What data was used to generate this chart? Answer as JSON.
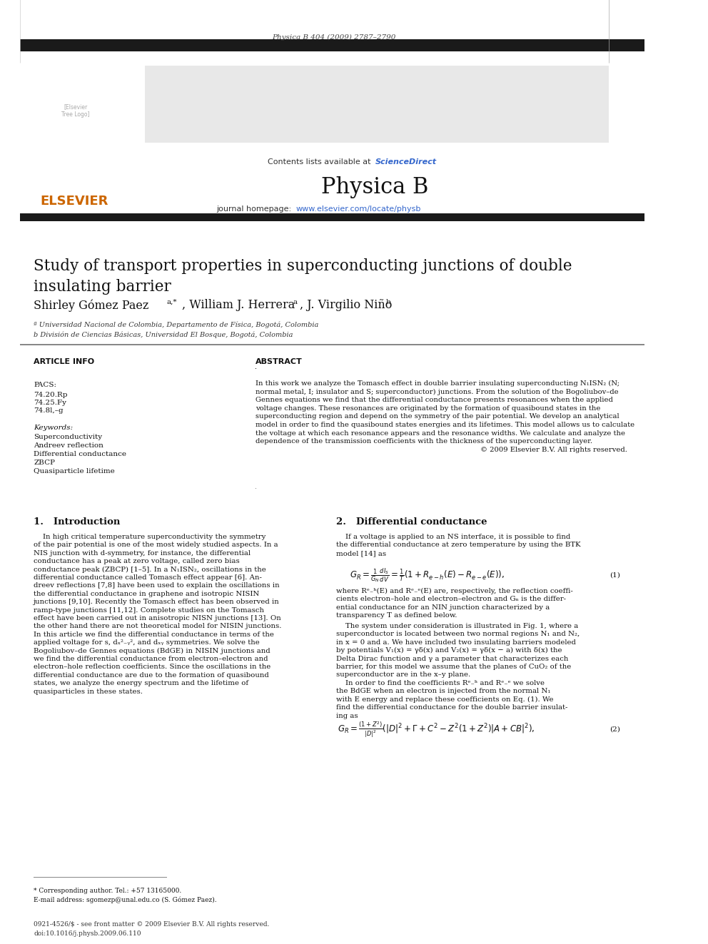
{
  "page_width": 9.92,
  "page_height": 13.23,
  "bg_color": "#ffffff",
  "journal_ref": "Physica B 404 (2009) 2787–2790",
  "header_bg": "#e8e8e8",
  "header_text1": "Contents lists available at ",
  "header_sciencedirect": "ScienceDirect",
  "header_sciencedirect_color": "#3366cc",
  "journal_name": "Physica B",
  "journal_url": "journal homepage: ",
  "journal_url_link": "www.elsevier.com/locate/physb",
  "journal_url_color": "#3366cc",
  "elsevier_color": "#cc6600",
  "title": "Study of transport properties in superconducting junctions of double\ninsulating barrier",
  "affil1": "ª Universidad Nacional de Colombia, Departamento de Física, Bogotá, Colombia",
  "affil2": "b División de Ciencias Básicas, Universidad El Bosque, Bogotá, Colombia",
  "section_article_info": "ARTICLE INFO",
  "pacs_label": "PACS:",
  "pacs1": "74.20.Rp",
  "pacs2": "74.25.Fy",
  "pacs3": "74.8l,–g",
  "keywords_label": "Keywords:",
  "kw1": "Superconductivity",
  "kw2": "Andreev reflection",
  "kw3": "Differential conductance",
  "kw4": "ZBCP",
  "kw5": "Quasiparticle lifetime",
  "section_abstract": "ABSTRACT",
  "copyright_line": "© 2009 Elsevier B.V. All rights reserved.",
  "sec1_title": "1.   Introduction",
  "sec2_title": "2.   Differential conductance",
  "eq1_num": "(1)",
  "eq2_num": "(2)",
  "footnote_star": "* Corresponding author. Tel.: +57 13165000.",
  "footnote_email": "E-mail address: sgomezp@unal.edu.co (S. Gómez Paez).",
  "footer_issn": "0921-4526/$ - see front matter © 2009 Elsevier B.V. All rights reserved.",
  "footer_doi": "doi:10.1016/j.physb.2009.06.110",
  "black_bar_color": "#1a1a1a"
}
